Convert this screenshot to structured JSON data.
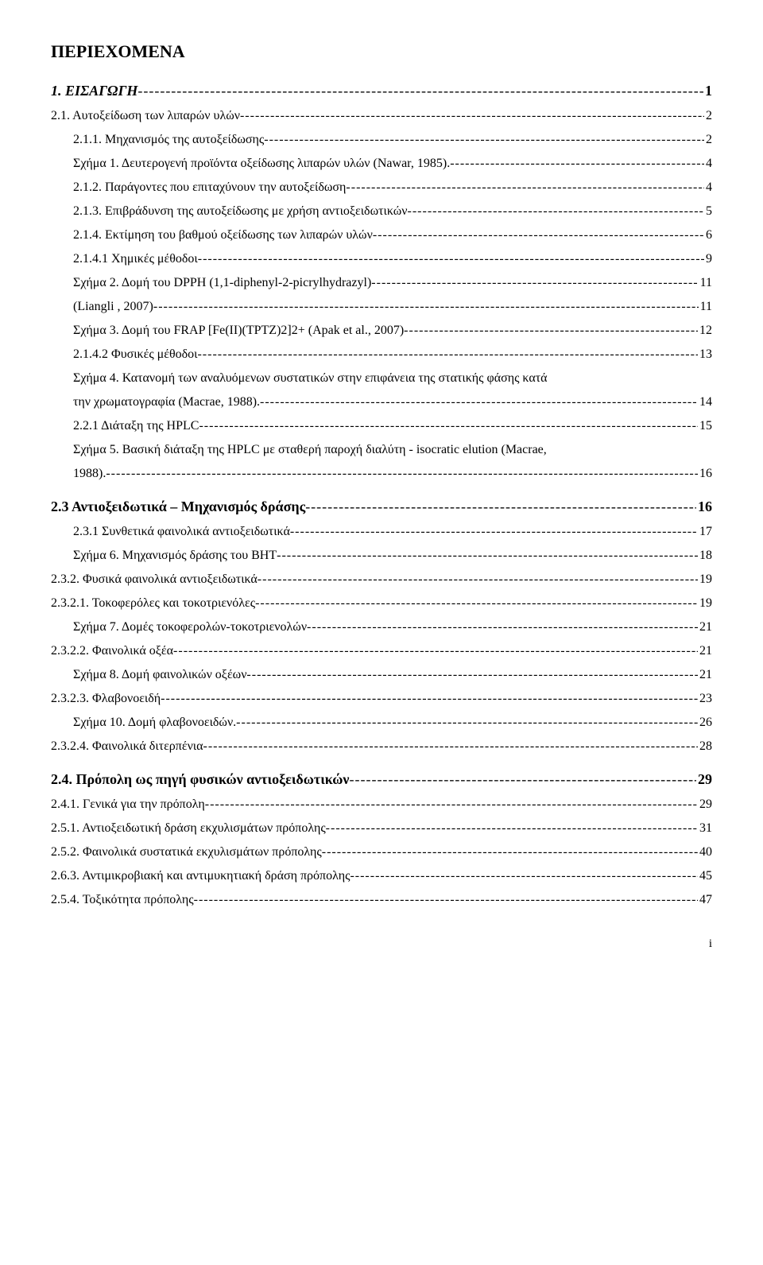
{
  "title": "ΠΕΡΙΕΧΟΜΕΝΑ",
  "footer": "i",
  "entries": [
    {
      "level": "lvl1",
      "label": "1.  ΕΙΣΑΓΩΓΗ ",
      "page": "1"
    },
    {
      "level": "lvl2",
      "label": "2.1. Αυτοξείδωση των λιπαρών υλών ",
      "page": " 2"
    },
    {
      "level": "lvl3",
      "label": "2.1.1. Μηχανισμός της αυτοξείδωσης",
      "page": "2"
    },
    {
      "level": "lvl3",
      "label": "Σχήμα 1. Δευτερογενή προϊόντα οξείδωσης λιπαρών υλών (Nawar, 1985). ",
      "page": "4"
    },
    {
      "level": "lvl3",
      "label": "2.1.2. Παράγοντες που επιταχύνουν την αυτοξείδωση",
      "page": "4"
    },
    {
      "level": "lvl3",
      "label": "2.1.3. Επιβράδυνση της αυτοξείδωσης με χρήση αντιοξειδωτικών ",
      "page": "5"
    },
    {
      "level": "lvl3",
      "label": "2.1.4. Εκτίμηση του βαθμού οξείδωσης των λιπαρών υλών",
      "page": "6"
    },
    {
      "level": "lvl3",
      "label": "2.1.4.1 Χημικές μέθοδοι ",
      "page": "9"
    },
    {
      "level": "lvl3",
      "label": "Σχήμα 2. Δομή του DPPH (1,1-diphenyl-2-picrylhydrazyl) ",
      "page": " 11"
    },
    {
      "level": "lvl3",
      "label": "(Liangli , 2007)",
      "page": " 11"
    },
    {
      "level": "lvl3",
      "label": "Σχήμα 3. Δομή του FRAP [Fe(II)(TPTZ)2]2+ (Apak et al., 2007) ",
      "page": " 12"
    },
    {
      "level": "lvl3",
      "label": "2.1.4.2  Φυσικές μέθοδοι ",
      "page": " 13"
    },
    {
      "level": "lvl3",
      "label": "Σχήμα 4. Κατανομή των αναλυόμενων συστατικών στην επιφάνεια της στατικής φάσης κατά",
      "no_leader": true
    },
    {
      "level": "lvl3",
      "label": "την χρωματογραφία (Macrae, 1988). ",
      "page": " 14"
    },
    {
      "level": "lvl3",
      "label": "2.2.1 Διάταξη της HPLC",
      "page": " 15"
    },
    {
      "level": "lvl3",
      "label": "Σχήμα 5.  Βασική διάταξη της HPLC με σταθερή παροχή διαλύτη - isocratic elution (Macrae,",
      "no_leader": true
    },
    {
      "level": "lvl3",
      "label": "1988). ",
      "page": " 16"
    },
    {
      "level": "lvl1-plain",
      "label": "2.3 Αντιοξειδωτικά – Μηχανισμός δράσης",
      "page": " 16"
    },
    {
      "level": "lvl3",
      "label": "2.3.1   Συνθετικά φαινολικά αντιοξειδωτικά ",
      "page": " 17"
    },
    {
      "level": "lvl3",
      "label": "Σχήμα 6. Μηχανισμός δράσης του BHT ",
      "page": " 18"
    },
    {
      "level": "lvl2",
      "label": "2.3.2. Φυσικά φαινολικά αντιοξειδωτικά",
      "page": " 19"
    },
    {
      "level": "lvl2",
      "label": "2.3.2.1. Τοκοφερόλες και τοκοτριενόλες",
      "page": " 19"
    },
    {
      "level": "lvl3",
      "label": "Σχήμα 7. Δομές τοκοφερολών-τοκοτριενολών ",
      "page": " 21"
    },
    {
      "level": "lvl2",
      "label": "2.3.2.2. Φαινολικά οξέα ",
      "page": " 21"
    },
    {
      "level": "lvl3",
      "label": "Σχήμα 8. Δομή φαινολικών οξέων ",
      "page": " 21"
    },
    {
      "level": "lvl2",
      "label": "2.3.2.3. Φλαβονοειδή",
      "page": " 23"
    },
    {
      "level": "lvl3",
      "label": "Σχήμα 10. Δομή φλαβονοειδών. ",
      "page": " 26"
    },
    {
      "level": "lvl2",
      "label": "2.3.2.4. Φαινολικά διτερπένια",
      "page": " 28"
    },
    {
      "level": "lvl1-plain",
      "label": "2.4. Πρόπολη ως πηγή φυσικών αντιοξειδωτικών ",
      "page": " 29"
    },
    {
      "level": "lvl2",
      "label": "2.4.1. Γενικά για την πρόπολη ",
      "page": " 29"
    },
    {
      "level": "lvl2",
      "label": "2.5.1. Αντιοξειδωτική δράση εκχυλισμάτων πρόπολης",
      "page": " 31"
    },
    {
      "level": "lvl2",
      "label": "2.5.2. Φαινολικά συστατικά εκχυλισμάτων πρόπολης ",
      "page": " 40"
    },
    {
      "level": "lvl2",
      "label": "2.6.3. Αντιμικροβιακή και αντιμυκητιακή δράση πρόπολης",
      "page": " 45"
    },
    {
      "level": "lvl2",
      "label": "2.5.4. Τοξικότητα πρόπολης",
      "page": " 47"
    }
  ]
}
